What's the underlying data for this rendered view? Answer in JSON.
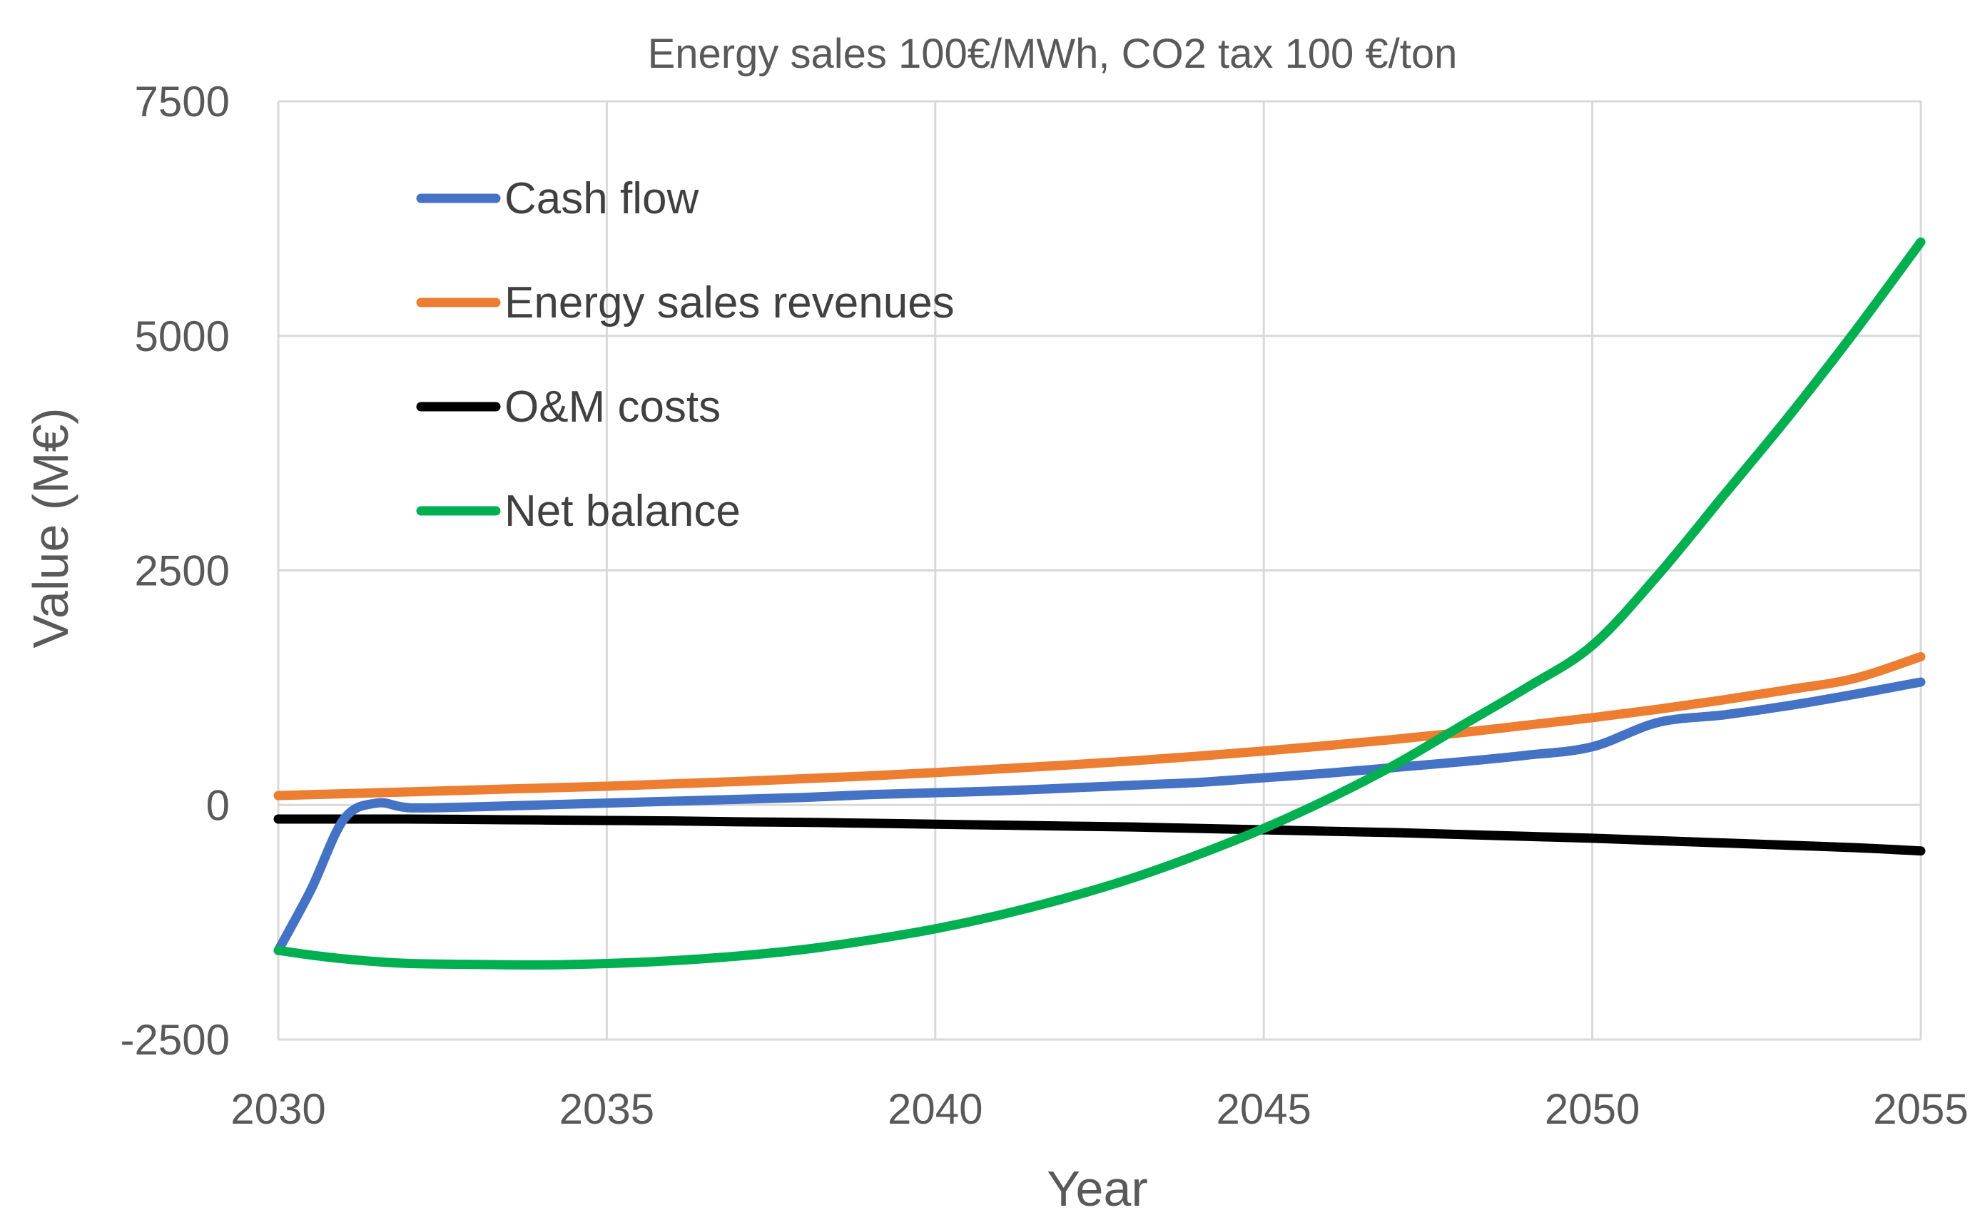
{
  "chart_data": {
    "type": "line",
    "title": "Energy sales 100€/MWh, CO2 tax 100 €/ton",
    "xlabel": "Year",
    "ylabel": "Value (M€)",
    "xlim": [
      2030,
      2055
    ],
    "ylim": [
      -2500,
      7500
    ],
    "x_ticks": [
      2030,
      2035,
      2040,
      2045,
      2050,
      2055
    ],
    "x_tick_labels": [
      "2030",
      "2035",
      "2040",
      "2045",
      "2050",
      "2055"
    ],
    "y_ticks": [
      -2500,
      0,
      2500,
      5000,
      7500
    ],
    "y_tick_labels": [
      "-2500",
      "0",
      "2500",
      "5000",
      "7500"
    ],
    "grid": true,
    "legend_position": "top-left",
    "x": [
      2030,
      2030.5,
      2031,
      2031.5,
      2032,
      2033,
      2034,
      2035,
      2036,
      2037,
      2038,
      2039,
      2040,
      2041,
      2042,
      2043,
      2044,
      2045,
      2046,
      2047,
      2048,
      2049,
      2050,
      2051,
      2052,
      2053,
      2054,
      2055
    ],
    "series": [
      {
        "name": "Cash flow",
        "color": "#4472C4",
        "values": [
          -1550,
          -900,
          -150,
          20,
          -30,
          -20,
          0,
          20,
          40,
          60,
          80,
          110,
          130,
          150,
          180,
          210,
          240,
          290,
          340,
          400,
          460,
          530,
          620,
          880,
          960,
          1060,
          1180,
          1310
        ]
      },
      {
        "name": "Energy sales revenues",
        "color": "#ED7D31",
        "values": [
          100,
          110,
          120,
          130,
          140,
          160,
          180,
          200,
          225,
          250,
          280,
          310,
          345,
          385,
          425,
          470,
          520,
          575,
          635,
          700,
          770,
          850,
          930,
          1020,
          1120,
          1230,
          1350,
          1580
        ]
      },
      {
        "name": "O&M costs",
        "color": "#000000",
        "values": [
          -150,
          -150,
          -150,
          -150,
          -150,
          -155,
          -160,
          -165,
          -170,
          -180,
          -185,
          -195,
          -205,
          -215,
          -225,
          -235,
          -250,
          -265,
          -280,
          -295,
          -315,
          -335,
          -355,
          -380,
          -405,
          -430,
          -455,
          -490
        ]
      },
      {
        "name": "Net balance",
        "color": "#00B050",
        "values": [
          -1550,
          -1600,
          -1640,
          -1670,
          -1690,
          -1700,
          -1705,
          -1690,
          -1660,
          -1610,
          -1540,
          -1440,
          -1320,
          -1170,
          -990,
          -780,
          -530,
          -250,
          70,
          430,
          840,
          1250,
          1700,
          2450,
          3300,
          4150,
          5050,
          6000
        ]
      }
    ]
  }
}
